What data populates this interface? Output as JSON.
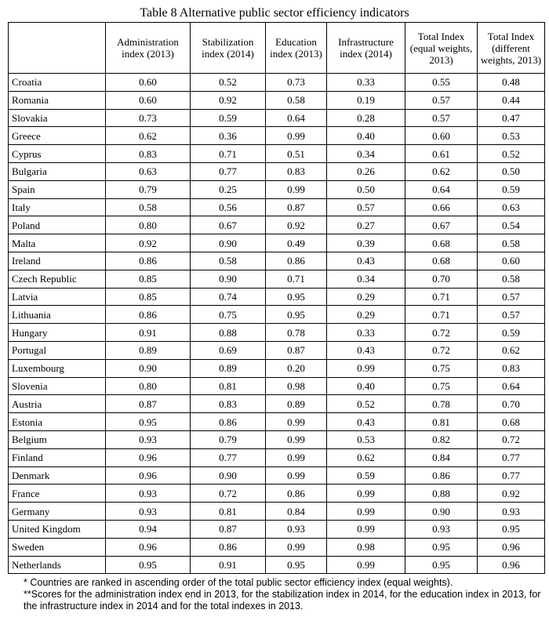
{
  "title": "Table 8 Alternative public sector efficiency indicators",
  "columns": [
    "",
    "Administration index (2013)",
    "Stabilization index (2014)",
    "Education index (2013)",
    "Infrastructure index (2014)",
    "Total Index (equal weights, 2013)",
    "Total Index (different weights, 2013)"
  ],
  "rows": [
    [
      "Croatia",
      "0.60",
      "0.52",
      "0.73",
      "0.33",
      "0.55",
      "0.48"
    ],
    [
      "Romania",
      "0.60",
      "0.92",
      "0.58",
      "0.19",
      "0.57",
      "0.44"
    ],
    [
      "Slovakia",
      "0.73",
      "0.59",
      "0.64",
      "0.28",
      "0.57",
      "0.47"
    ],
    [
      "Greece",
      "0.62",
      "0.36",
      "0.99",
      "0.40",
      "0.60",
      "0.53"
    ],
    [
      "Cyprus",
      "0.83",
      "0.71",
      "0.51",
      "0.34",
      "0.61",
      "0.52"
    ],
    [
      "Bulgaria",
      "0.63",
      "0.77",
      "0.83",
      "0.26",
      "0.62",
      "0.50"
    ],
    [
      "Spain",
      "0.79",
      "0.25",
      "0.99",
      "0.50",
      "0.64",
      "0.59"
    ],
    [
      "Italy",
      "0.58",
      "0.56",
      "0.87",
      "0.57",
      "0.66",
      "0.63"
    ],
    [
      "Poland",
      "0.80",
      "0.67",
      "0.92",
      "0.27",
      "0.67",
      "0.54"
    ],
    [
      "Malta",
      "0.92",
      "0.90",
      "0.49",
      "0.39",
      "0.68",
      "0.58"
    ],
    [
      "Ireland",
      "0.86",
      "0.58",
      "0.86",
      "0.43",
      "0.68",
      "0.60"
    ],
    [
      "Czech Republic",
      "0.85",
      "0.90",
      "0.71",
      "0.34",
      "0.70",
      "0.58"
    ],
    [
      "Latvia",
      "0.85",
      "0.74",
      "0.95",
      "0.29",
      "0.71",
      "0.57"
    ],
    [
      "Lithuania",
      "0.86",
      "0.75",
      "0.95",
      "0.29",
      "0.71",
      "0.57"
    ],
    [
      "Hungary",
      "0.91",
      "0.88",
      "0.78",
      "0.33",
      "0.72",
      "0.59"
    ],
    [
      "Portugal",
      "0.89",
      "0.69",
      "0.87",
      "0.43",
      "0.72",
      "0.62"
    ],
    [
      "Luxembourg",
      "0.90",
      "0.89",
      "0.20",
      "0.99",
      "0.75",
      "0.83"
    ],
    [
      "Slovenia",
      "0.80",
      "0.81",
      "0.98",
      "0.40",
      "0.75",
      "0.64"
    ],
    [
      "Austria",
      "0.87",
      "0.83",
      "0.89",
      "0.52",
      "0.78",
      "0.70"
    ],
    [
      "Estonia",
      "0.95",
      "0.86",
      "0.99",
      "0.43",
      "0.81",
      "0.68"
    ],
    [
      "Belgium",
      "0.93",
      "0.79",
      "0.99",
      "0.53",
      "0.82",
      "0.72"
    ],
    [
      "Finland",
      "0.96",
      "0.77",
      "0.99",
      "0.62",
      "0.84",
      "0.77"
    ],
    [
      "Denmark",
      "0.96",
      "0.90",
      "0.99",
      "0.59",
      "0.86",
      "0.77"
    ],
    [
      "France",
      "0.93",
      "0.72",
      "0.86",
      "0.99",
      "0.88",
      "0.92"
    ],
    [
      "Germany",
      "0.93",
      "0.81",
      "0.84",
      "0.99",
      "0.90",
      "0.93"
    ],
    [
      "United Kingdom",
      "0.94",
      "0.87",
      "0.93",
      "0.99",
      "0.93",
      "0.95"
    ],
    [
      "Sweden",
      "0.96",
      "0.86",
      "0.99",
      "0.98",
      "0.95",
      "0.96"
    ],
    [
      "Netherlands",
      "0.95",
      "0.91",
      "0.95",
      "0.99",
      "0.95",
      "0.96"
    ]
  ],
  "notes": [
    "* Countries are ranked in ascending order of the total public sector efficiency index (equal weights).",
    "**Scores for the administration index end in 2013, for the stabilization index in 2014, for the education index in 2013, for the infrastructure index in 2014 and for the total indexes in 2013."
  ]
}
